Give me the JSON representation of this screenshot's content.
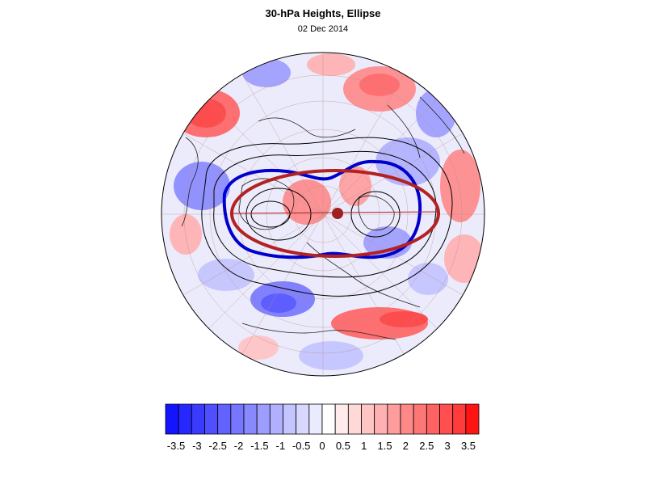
{
  "title": "30-hPa Heights, Ellipse",
  "subtitle": "02 Dec 2014",
  "colorbar": {
    "colors": [
      "#1414ff",
      "#2727ff",
      "#3b3bff",
      "#4f4fff",
      "#6262ff",
      "#7676ff",
      "#8989ff",
      "#9d9dff",
      "#b0b0ff",
      "#c4c4ff",
      "#d8d8ff",
      "#ebebff",
      "#ffffff",
      "#ffebeb",
      "#ffd8d8",
      "#ffc4c4",
      "#ffb0b0",
      "#ff9d9d",
      "#ff8989",
      "#ff7676",
      "#ff6262",
      "#ff4f4f",
      "#ff3b3b",
      "#ff1414"
    ],
    "tick_labels": [
      "-3.5",
      "-3",
      "-2.5",
      "-2",
      "-1.5",
      "-1",
      "-0.5",
      "0",
      "0.5",
      "1",
      "1.5",
      "2",
      "2.5",
      "3",
      "3.5"
    ]
  },
  "map": {
    "projection": "north-polar orthographic",
    "ellipse_color": "#b22222",
    "contour_blue_color": "#0000cc",
    "pole_marker_color": "#9e2020"
  }
}
